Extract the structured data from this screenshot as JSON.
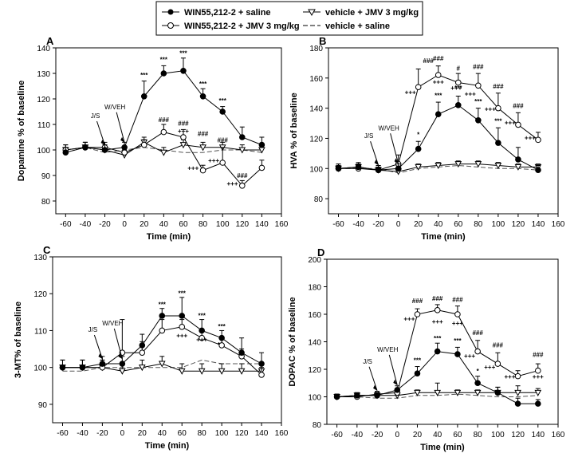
{
  "legend": [
    {
      "label": "WIN55,212-2 + saline",
      "series": "win_sal"
    },
    {
      "label": "vehicle + JMV 3 mg/kg",
      "series": "veh_jmv"
    },
    {
      "label": "WIN55,212-2 + JMV 3 mg/kg",
      "series": "win_jmv"
    },
    {
      "label": "vehicle + saline",
      "series": "veh_sal"
    }
  ],
  "chart_data": [
    {
      "id": "A",
      "type": "line",
      "panel_label": "A",
      "title": "",
      "xlabel": "Time (min)",
      "ylabel": "Dopamine % of baseline",
      "xlim": [
        -70,
        160
      ],
      "ylim": [
        75,
        140
      ],
      "xticks": [
        -60,
        -40,
        -20,
        0,
        20,
        40,
        60,
        80,
        100,
        120,
        140,
        160
      ],
      "yticks": [
        80,
        90,
        100,
        110,
        120,
        130,
        140
      ],
      "x": [
        -60,
        -40,
        -20,
        0,
        20,
        40,
        60,
        80,
        100,
        120,
        140
      ],
      "series": [
        {
          "name": "WIN55,212-2 + saline",
          "key": "win_sal",
          "values": [
            99,
            101,
            100,
            101,
            121,
            130,
            131,
            121,
            115,
            105,
            102
          ],
          "errors": [
            2,
            2,
            2,
            2,
            6,
            3,
            5,
            3,
            2,
            4,
            3
          ]
        },
        {
          "name": "WIN55,212-2 + JMV 3 mg/kg",
          "key": "win_jmv",
          "values": [
            100,
            101,
            101,
            99,
            102,
            107,
            105,
            92,
            95,
            86,
            93
          ],
          "errors": [
            2,
            2,
            2,
            2,
            2,
            3,
            3,
            2,
            6,
            2,
            3
          ]
        },
        {
          "name": "vehicle + JMV 3 mg/kg",
          "key": "veh_jmv",
          "values": [
            100,
            101,
            100,
            98,
            103,
            99,
            102,
            101,
            101,
            100,
            100
          ],
          "errors": [
            2,
            2,
            2,
            2,
            2,
            2,
            2,
            2,
            2,
            2,
            2
          ]
        },
        {
          "name": "vehicle + saline",
          "key": "veh_sal",
          "values": [
            99,
            101,
            99,
            100,
            101,
            100,
            99,
            99,
            100,
            100,
            99
          ],
          "errors": []
        }
      ],
      "annotations": [
        {
          "text": "***",
          "x": 20,
          "y": 128.5
        },
        {
          "text": "***",
          "x": 40,
          "y": 134.5
        },
        {
          "text": "***",
          "x": 60,
          "y": 137
        },
        {
          "text": "***",
          "x": 80,
          "y": 125
        },
        {
          "text": "***",
          "x": 100,
          "y": 118.5
        },
        {
          "text": "###",
          "x": 40,
          "y": 111
        },
        {
          "text": "+++",
          "x": 60,
          "y": 106.5
        },
        {
          "text": "###",
          "x": 60,
          "y": 109.5
        },
        {
          "text": "###",
          "x": 80,
          "y": 105.5
        },
        {
          "text": "+++",
          "x": 70,
          "y": 92
        },
        {
          "text": "###",
          "x": 100,
          "y": 103
        },
        {
          "text": "+++",
          "x": 91,
          "y": 95
        },
        {
          "text": "###",
          "x": 120,
          "y": 89
        },
        {
          "text": "+++",
          "x": 110,
          "y": 86
        }
      ],
      "arrows": [
        {
          "label": "J/S",
          "x": -20
        },
        {
          "label": "W/VEH",
          "x": 0
        }
      ]
    },
    {
      "id": "B",
      "type": "line",
      "panel_label": "B",
      "title": "",
      "xlabel": "Time (min)",
      "ylabel": "HVA % of baseline",
      "xlim": [
        -70,
        160
      ],
      "ylim": [
        70,
        180
      ],
      "xticks": [
        -60,
        -40,
        -20,
        0,
        20,
        40,
        60,
        80,
        100,
        120,
        140,
        160
      ],
      "yticks": [
        80,
        100,
        120,
        140,
        160,
        180
      ],
      "x": [
        -60,
        -40,
        -20,
        0,
        20,
        40,
        60,
        80,
        100,
        120,
        140
      ],
      "series": [
        {
          "name": "WIN55,212-2 + saline",
          "key": "win_sal",
          "values": [
            100,
            101,
            99,
            100,
            113,
            136,
            142,
            132,
            117,
            106,
            99
          ],
          "errors": [
            3,
            3,
            3,
            3,
            5,
            8,
            6,
            8,
            10,
            8,
            3
          ]
        },
        {
          "name": "WIN55,212-2 + JMV 3 mg/kg",
          "key": "win_jmv",
          "values": [
            100,
            100,
            99,
            103,
            154,
            162,
            157,
            155,
            140,
            129,
            119
          ],
          "errors": [
            3,
            3,
            3,
            6,
            12,
            6,
            6,
            8,
            10,
            8,
            5
          ]
        },
        {
          "name": "vehicle + JMV 3 mg/kg",
          "key": "veh_jmv",
          "values": [
            100,
            101,
            99,
            98,
            101,
            102,
            103,
            103,
            102,
            101,
            101
          ],
          "errors": [
            2,
            2,
            2,
            2,
            2,
            2,
            2,
            2,
            2,
            2,
            2
          ]
        },
        {
          "name": "vehicle + saline",
          "key": "veh_sal",
          "values": [
            100,
            100,
            100,
            97,
            100,
            101,
            102,
            101,
            100,
            100,
            99
          ],
          "errors": []
        }
      ],
      "annotations": [
        {
          "text": "*",
          "x": 20,
          "y": 121
        },
        {
          "text": "***",
          "x": 40,
          "y": 147
        },
        {
          "text": "***",
          "x": 60,
          "y": 152
        },
        {
          "text": "***",
          "x": 80,
          "y": 143
        },
        {
          "text": "***",
          "x": 100,
          "y": 130
        },
        {
          "text": "###",
          "x": 30,
          "y": 170
        },
        {
          "text": "###",
          "x": 40,
          "y": 171.5
        },
        {
          "text": "#",
          "x": 60,
          "y": 165
        },
        {
          "text": "###",
          "x": 80,
          "y": 166
        },
        {
          "text": "###",
          "x": 100,
          "y": 153
        },
        {
          "text": "###",
          "x": 120,
          "y": 140
        },
        {
          "text": "+++",
          "x": 12,
          "y": 149
        },
        {
          "text": "+++",
          "x": 40,
          "y": 156
        },
        {
          "text": "+++",
          "x": 58,
          "y": 152
        },
        {
          "text": "+++",
          "x": 72,
          "y": 148
        },
        {
          "text": "+++",
          "x": 92,
          "y": 138
        },
        {
          "text": "+++",
          "x": 112,
          "y": 129
        },
        {
          "text": "+++",
          "x": 132,
          "y": 119
        }
      ],
      "arrows": [
        {
          "label": "J/S",
          "x": -20
        },
        {
          "label": "W/VEH",
          "x": 0
        }
      ]
    },
    {
      "id": "C",
      "type": "line",
      "panel_label": "C",
      "title": "",
      "xlabel": "Time (min)",
      "ylabel": "3-MT% of baseline",
      "xlim": [
        -70,
        160
      ],
      "ylim": [
        85,
        130
      ],
      "xticks": [
        -60,
        -40,
        -20,
        0,
        20,
        40,
        60,
        80,
        100,
        120,
        140,
        160
      ],
      "yticks": [
        90,
        100,
        110,
        120,
        130
      ],
      "x": [
        -60,
        -40,
        -20,
        0,
        20,
        40,
        60,
        80,
        100,
        120,
        140
      ],
      "series": [
        {
          "name": "WIN55,212-2 + saline",
          "key": "win_sal",
          "values": [
            100,
            100,
            101,
            101,
            106,
            114,
            114,
            110,
            108,
            104,
            101
          ],
          "errors": [
            2,
            2,
            2,
            2,
            3,
            2,
            5,
            3,
            2,
            4,
            3
          ]
        },
        {
          "name": "WIN55,212-2 + JMV 3 mg/kg",
          "key": "win_jmv",
          "values": [
            100,
            100,
            100,
            104,
            104,
            110,
            111,
            108,
            106,
            103,
            98
          ],
          "errors": [
            2,
            2,
            2,
            9,
            3,
            3,
            2,
            2,
            2,
            2,
            2
          ]
        },
        {
          "name": "vehicle + JMV 3 mg/kg",
          "key": "veh_jmv",
          "values": [
            100,
            100,
            100,
            99,
            100,
            101,
            99,
            99,
            99,
            99,
            99
          ],
          "errors": [
            2,
            2,
            2,
            2,
            2,
            2,
            2,
            2,
            2,
            2,
            2
          ]
        },
        {
          "name": "vehicle + saline",
          "key": "veh_sal",
          "values": [
            99,
            99,
            100,
            100,
            100,
            100,
            100,
            102,
            101,
            101,
            101
          ],
          "errors": []
        }
      ],
      "annotations": [
        {
          "text": "***",
          "x": 40,
          "y": 116.5
        },
        {
          "text": "***",
          "x": 60,
          "y": 119.5
        },
        {
          "text": "***",
          "x": 80,
          "y": 113.5
        },
        {
          "text": "***",
          "x": 100,
          "y": 110.5
        },
        {
          "text": "+++",
          "x": 60,
          "y": 108
        },
        {
          "text": "+++",
          "x": 80,
          "y": 107
        },
        {
          "text": "*",
          "x": 97,
          "y": 105.5
        }
      ],
      "arrows": [
        {
          "label": "J/S",
          "x": -20
        },
        {
          "label": "W/VEH",
          "x": 0
        }
      ]
    },
    {
      "id": "D",
      "type": "line",
      "panel_label": "D",
      "title": "",
      "xlabel": "Time (min)",
      "ylabel": "DOPAC % of baseline",
      "xlim": [
        -70,
        160
      ],
      "ylim": [
        80,
        200
      ],
      "xticks": [
        -60,
        -40,
        -20,
        0,
        20,
        40,
        60,
        80,
        100,
        120,
        140,
        160
      ],
      "yticks": [
        80,
        100,
        120,
        140,
        160,
        180,
        200
      ],
      "x": [
        -60,
        -40,
        -20,
        0,
        20,
        40,
        60,
        80,
        100,
        120,
        140
      ],
      "series": [
        {
          "name": "WIN55,212-2 + saline",
          "key": "win_sal",
          "values": [
            100,
            101,
            101,
            105,
            117,
            133,
            131,
            110,
            103,
            95,
            95
          ],
          "errors": [
            2,
            2,
            2,
            3,
            5,
            6,
            5,
            5,
            4,
            4,
            3
          ]
        },
        {
          "name": "WIN55,212-2 + JMV 3 mg/kg",
          "key": "win_jmv",
          "values": [
            100,
            100,
            102,
            103,
            160,
            163,
            160,
            133,
            124,
            115,
            119
          ],
          "errors": [
            2,
            2,
            2,
            3,
            4,
            4,
            6,
            8,
            8,
            4,
            5
          ]
        },
        {
          "name": "vehicle + JMV 3 mg/kg",
          "key": "veh_jmv",
          "values": [
            100,
            101,
            101,
            101,
            103,
            103,
            103,
            103,
            103,
            103,
            103
          ],
          "errors": [
            2,
            2,
            2,
            2,
            2,
            7,
            2,
            2,
            4,
            5,
            3
          ]
        },
        {
          "name": "vehicle + saline",
          "key": "veh_sal",
          "values": [
            100,
            100,
            99,
            99,
            101,
            101,
            102,
            101,
            100,
            100,
            101
          ],
          "errors": []
        }
      ],
      "annotations": [
        {
          "text": "***",
          "x": 20,
          "y": 125
        },
        {
          "text": "***",
          "x": 40,
          "y": 141
        },
        {
          "text": "***",
          "x": 60,
          "y": 139
        },
        {
          "text": "*",
          "x": 80,
          "y": 117
        },
        {
          "text": "###",
          "x": 20,
          "y": 168
        },
        {
          "text": "###",
          "x": 40,
          "y": 170
        },
        {
          "text": "###",
          "x": 60,
          "y": 169
        },
        {
          "text": "###",
          "x": 80,
          "y": 145
        },
        {
          "text": "###",
          "x": 100,
          "y": 136
        },
        {
          "text": "###",
          "x": 140,
          "y": 129
        },
        {
          "text": "+++",
          "x": 12,
          "y": 155
        },
        {
          "text": "+++",
          "x": 40,
          "y": 153
        },
        {
          "text": "+++",
          "x": 60,
          "y": 152
        },
        {
          "text": "+++",
          "x": 72,
          "y": 128
        },
        {
          "text": "+++",
          "x": 92,
          "y": 120
        },
        {
          "text": "+++",
          "x": 112,
          "y": 113
        },
        {
          "text": "+++",
          "x": 140,
          "y": 113
        }
      ],
      "arrows": [
        {
          "label": "J/S",
          "x": -20
        },
        {
          "label": "W/VEH",
          "x": 0
        }
      ]
    }
  ]
}
